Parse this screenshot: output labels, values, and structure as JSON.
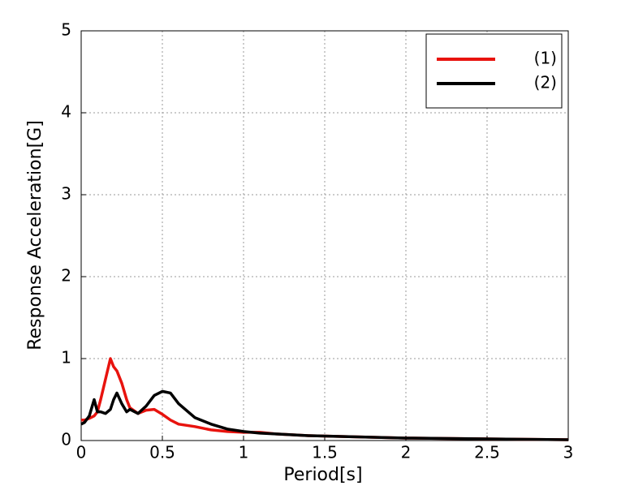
{
  "chart_data": {
    "type": "line",
    "x_label": "Period[s]",
    "y_label": "Response Acceleration[G]",
    "x": [
      0,
      0.02,
      0.05,
      0.08,
      0.1,
      0.12,
      0.15,
      0.18,
      0.2,
      0.22,
      0.25,
      0.28,
      0.3,
      0.35,
      0.4,
      0.45,
      0.5,
      0.55,
      0.6,
      0.7,
      0.8,
      0.9,
      1.0,
      1.1,
      1.2,
      1.4,
      1.6,
      1.8,
      2.0,
      2.5,
      3.0
    ],
    "series": [
      {
        "name": "(1)",
        "color": "#e8130e",
        "values": [
          0.25,
          0.25,
          0.27,
          0.3,
          0.35,
          0.5,
          0.75,
          1.0,
          0.9,
          0.85,
          0.7,
          0.5,
          0.4,
          0.33,
          0.37,
          0.38,
          0.32,
          0.25,
          0.2,
          0.17,
          0.13,
          0.11,
          0.1,
          0.1,
          0.08,
          0.06,
          0.05,
          0.04,
          0.03,
          0.02,
          0.01
        ]
      },
      {
        "name": "(2)",
        "color": "#000000",
        "values": [
          0.2,
          0.22,
          0.3,
          0.5,
          0.35,
          0.35,
          0.33,
          0.38,
          0.5,
          0.58,
          0.45,
          0.35,
          0.38,
          0.33,
          0.42,
          0.55,
          0.6,
          0.58,
          0.45,
          0.28,
          0.2,
          0.14,
          0.11,
          0.09,
          0.08,
          0.06,
          0.05,
          0.04,
          0.03,
          0.02,
          0.01
        ]
      }
    ],
    "xlim": [
      0,
      3
    ],
    "xticks": [
      0,
      0.5,
      1,
      1.5,
      2,
      2.5,
      3
    ],
    "ylim": [
      0,
      5
    ],
    "yticks": [
      0,
      1,
      2,
      3,
      4,
      5
    ],
    "grid": true,
    "legend": "upper right"
  }
}
